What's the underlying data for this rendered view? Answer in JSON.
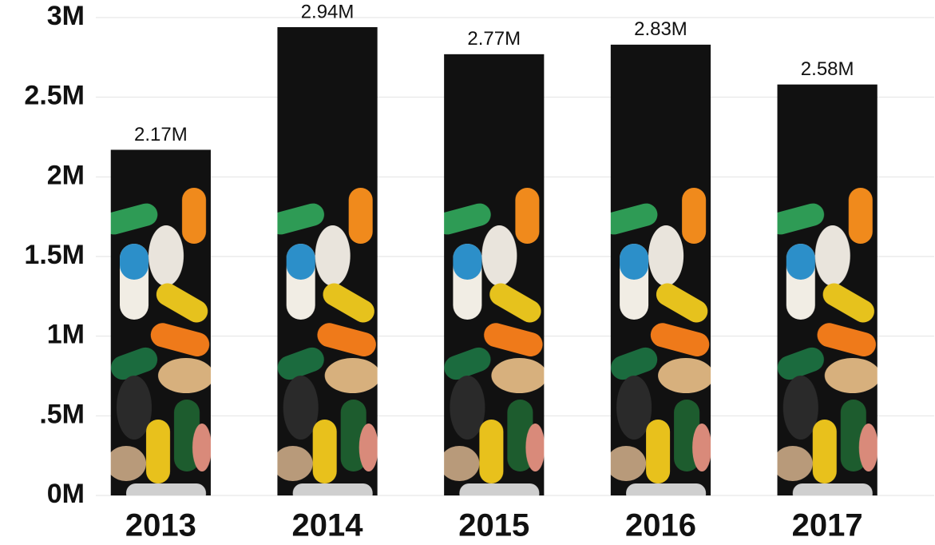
{
  "chart_data": {
    "type": "bar",
    "categories": [
      "2013",
      "2014",
      "2015",
      "2016",
      "2017"
    ],
    "values": [
      2.17,
      2.94,
      2.77,
      2.83,
      2.58
    ],
    "value_labels": [
      "2.17M",
      "2.94M",
      "2.77M",
      "2.83M",
      "2.58M"
    ],
    "color": "#111111",
    "ylim": [
      0,
      3
    ],
    "yticks": [
      {
        "value": 0,
        "label": "0M"
      },
      {
        "value": 0.5,
        "label": ".5M"
      },
      {
        "value": 1,
        "label": "1M"
      },
      {
        "value": 1.5,
        "label": "1.5M"
      },
      {
        "value": 2,
        "label": "2M"
      },
      {
        "value": 2.5,
        "label": "2.5M"
      },
      {
        "value": 3,
        "label": "3M"
      }
    ],
    "grid": true
  }
}
